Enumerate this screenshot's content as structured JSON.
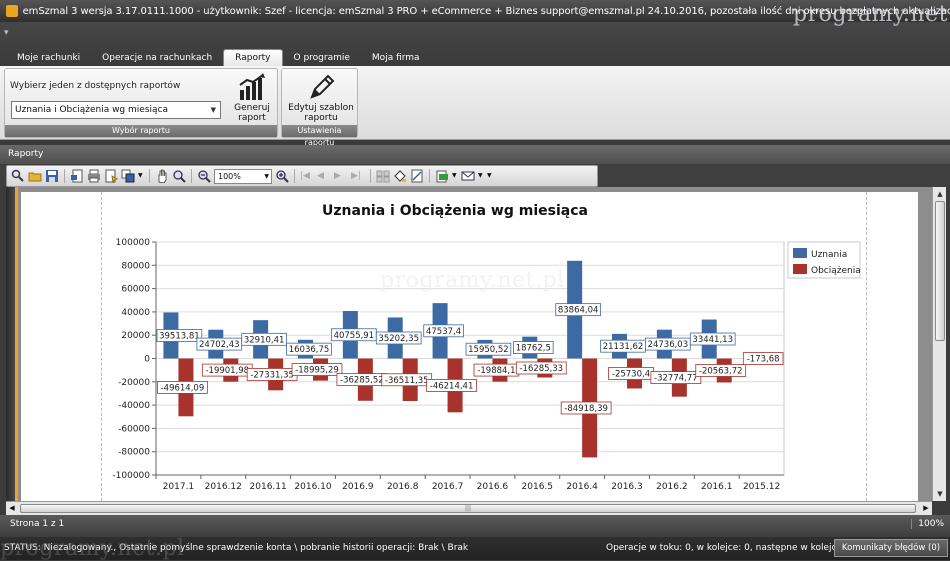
{
  "window": {
    "title": "emSzmal 3 wersja 3.17.0111.1000 - użytkownik: Szef - licencja: emSzmal 3 PRO + eCommerce + Biznes support@emszmal.pl 24.10.2016, pozostała ilość dni okresu bezpłatnych aktualizacji: 1...",
    "watermark": "programy.net.pl"
  },
  "tabs": [
    {
      "label": "Moje rachunki",
      "active": false
    },
    {
      "label": "Operacje na rachunkach",
      "active": false
    },
    {
      "label": "Raporty",
      "active": true
    },
    {
      "label": "O programie",
      "active": false
    },
    {
      "label": "Moja firma",
      "active": false
    }
  ],
  "ribbon": {
    "report_group": {
      "prompt": "Wybierz jeden z dostępnych raportów",
      "selected_report": "Uznania i Obciążenia wg miesiąca",
      "generate_label": "Generuj raport",
      "caption": "Wybór raportu"
    },
    "settings_group": {
      "edit_label": "Edytuj szablon raportu",
      "caption": "Ustawienia raportu"
    }
  },
  "panel": {
    "title": "Raporty"
  },
  "toolbar": {
    "zoom": "100%"
  },
  "status": {
    "page": "Strona 1 z 1",
    "zoom": "100%",
    "status_text": "STATUS: Niezalogowany., Ostatnie pomyślne sprawdzenie konta \\ pobranie historii operacji: Brak \\ Brak",
    "operations": "Operacje w toku: 0, w kolejce: 0, następne w kolejce: -",
    "errors_button": "Komunikaty błędów (0)"
  },
  "chart_data": {
    "type": "bar",
    "title": "Uznania i Obciążenia wg miesiąca",
    "categories": [
      "2017.1",
      "2016.12",
      "2016.11",
      "2016.10",
      "2016.9",
      "2016.8",
      "2016.7",
      "2016.6",
      "2016.5",
      "2016.4",
      "2016.3",
      "2016.2",
      "2016.1",
      "2015.12"
    ],
    "series": [
      {
        "name": "Uznania",
        "color": "#3d6aa3",
        "values": [
          39513.81,
          24702.43,
          32910.41,
          16036.75,
          40755.91,
          35202.35,
          47537.4,
          15950.52,
          18762.5,
          83864.04,
          21131.62,
          24736.03,
          33441.13,
          0
        ],
        "labels": [
          "39513,81",
          "24702,43",
          "32910,41",
          "16036,75",
          "40755,91",
          "35202,35",
          "47537,4",
          "15950,52",
          "18762,5",
          "83864,04",
          "21131,62",
          "24736,03",
          "33441,13",
          ""
        ]
      },
      {
        "name": "Obciążenia",
        "color": "#a8332c",
        "values": [
          -49614.09,
          -19901.98,
          -27331.35,
          -18995.29,
          -36285.52,
          -36511.35,
          -46214.41,
          -19884.1,
          -16285.33,
          -84918.39,
          -25730.4,
          -32774.77,
          -20563.72,
          -173.68
        ],
        "labels": [
          "-49614,09",
          "-19901,98",
          "-27331,35",
          "-18995,29",
          "-36285,52",
          "-36511,35",
          "-46214,41",
          "-19884,1",
          "-16285,33",
          "-84918,39",
          "-25730,4",
          "-32774,77",
          "-20563,72",
          "-173,68"
        ]
      }
    ],
    "yticks": [
      "100000",
      "80000",
      "60000",
      "40000",
      "20000",
      "0",
      "-20000",
      "-40000",
      "-60000",
      "-80000",
      "-100000"
    ],
    "ylim": [
      -100000,
      100000
    ],
    "grid": true,
    "legend_position": "top-right"
  }
}
